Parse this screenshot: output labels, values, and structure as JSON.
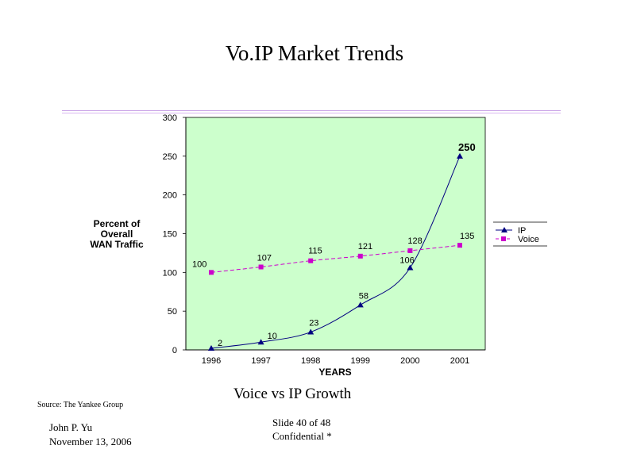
{
  "slide": {
    "title": "Vo.IP Market Trends",
    "caption": "Voice vs IP Growth",
    "source": "Source: The Yankee Group",
    "author": "John P. Yu",
    "date": "November 13, 2006",
    "slide_number": "Slide 40  of 48",
    "confidentiality": "Confidential *"
  },
  "colors": {
    "plot_bg": "#ccffcc",
    "ip": "#000080",
    "voice": "#cc00cc",
    "rule": "#c8a0e6"
  },
  "chart_data": {
    "type": "line",
    "title": "",
    "xlabel": "YEARS",
    "ylabel": [
      "Percent of",
      "Overall",
      "WAN Traffic"
    ],
    "categories": [
      "1996",
      "1997",
      "1998",
      "1999",
      "2000",
      "2001"
    ],
    "ylim": [
      0,
      300
    ],
    "yticks": [
      "0",
      "50",
      "100",
      "150",
      "200",
      "250",
      "300"
    ],
    "grid": false,
    "legend_position": "right",
    "series": [
      {
        "name": "IP",
        "marker": "triangle",
        "line": "solid",
        "values": [
          2,
          10,
          23,
          58,
          106,
          250
        ],
        "labels": [
          "2",
          "10",
          "23",
          "58",
          "106",
          "250"
        ]
      },
      {
        "name": "Voice",
        "marker": "square",
        "line": "dashed",
        "values": [
          100,
          107,
          115,
          121,
          128,
          135
        ],
        "labels": [
          "100",
          "107",
          "115",
          "121",
          "128",
          "135"
        ]
      }
    ]
  }
}
